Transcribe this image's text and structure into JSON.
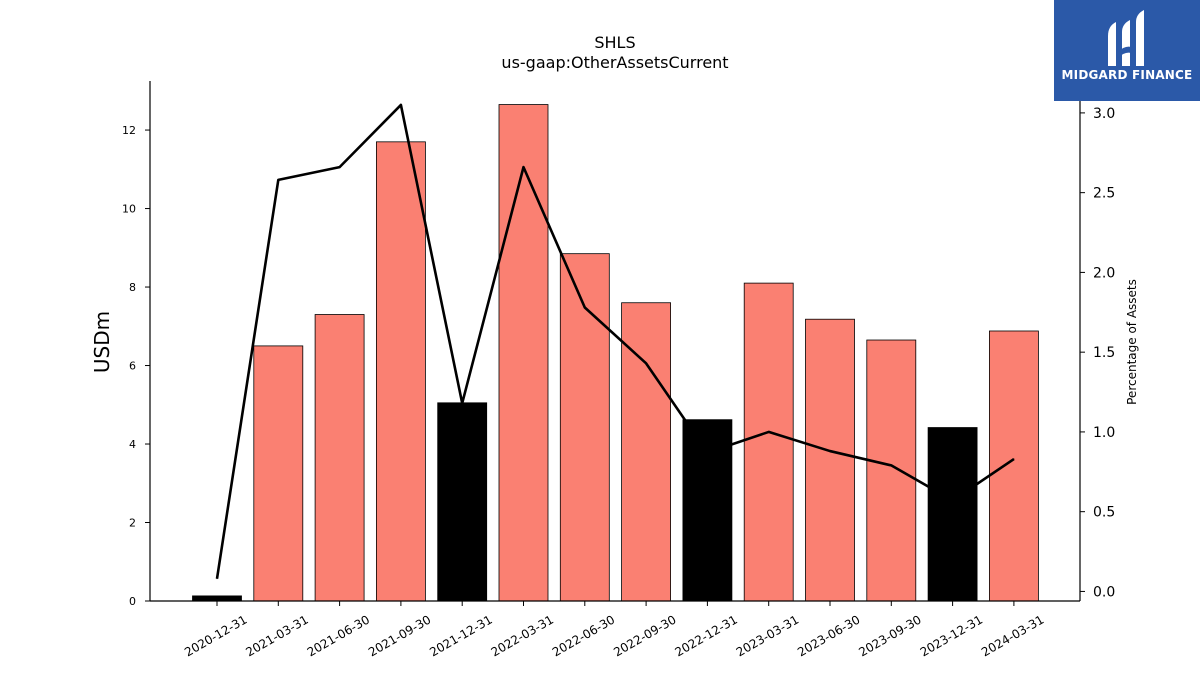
{
  "chart_data": {
    "type": "bar",
    "title": "SHLS",
    "subtitle": "us-gaap:OtherAssetsCurrent",
    "ylabel": "USDm",
    "y2label": "Percentage of Assets",
    "categories": [
      "2020-12-31",
      "2021-03-31",
      "2021-06-30",
      "2021-09-30",
      "2021-12-31",
      "2022-03-31",
      "2022-06-30",
      "2022-09-30",
      "2022-12-31",
      "2023-03-31",
      "2023-06-30",
      "2023-09-30",
      "2023-12-31",
      "2024-03-31"
    ],
    "series": [
      {
        "values": [
          0.13,
          6.5,
          7.3,
          11.7,
          5.05,
          12.65,
          8.85,
          7.6,
          4.62,
          8.1,
          7.18,
          6.65,
          4.42,
          6.88
        ]
      },
      {
        "values": [
          0.08,
          2.58,
          2.66,
          3.05,
          1.18,
          2.66,
          1.78,
          1.43,
          0.87,
          1.0,
          0.88,
          0.79,
          0.57,
          0.83
        ]
      }
    ],
    "bar_colors": [
      "#000000",
      "#fa8072",
      "#fa8072",
      "#fa8072",
      "#000000",
      "#fa8072",
      "#fa8072",
      "#fa8072",
      "#000000",
      "#fa8072",
      "#fa8072",
      "#fa8072",
      "#000000",
      "#fa8072"
    ],
    "line_color": "#000000",
    "ylim": [
      0,
      13.25
    ],
    "y2lim": [
      -0.06,
      3.2
    ],
    "yticks": [
      0,
      2,
      4,
      6,
      8,
      10,
      12
    ],
    "y2ticks": [
      "0.0",
      "0.5",
      "1.0",
      "1.5",
      "2.0",
      "2.5",
      "3.0"
    ],
    "grid": false,
    "legend": "none"
  },
  "logo": {
    "text": "MIDGARD FINANCE",
    "background": "#2b59a8"
  }
}
